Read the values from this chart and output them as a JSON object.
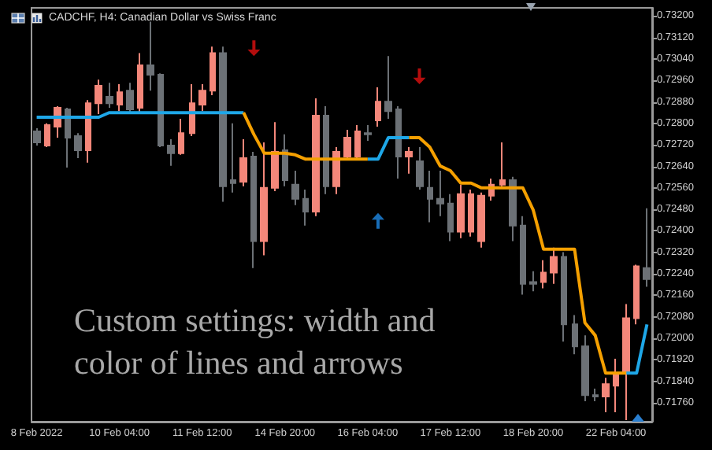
{
  "chart_data": {
    "type": "candlestick",
    "title": "CADCHF, H4: Canadian Dollar vs Swiss Franc",
    "categories": [
      "8 Feb 2022",
      null,
      null,
      null,
      null,
      null,
      null,
      null,
      "10 Feb 04:00",
      null,
      null,
      null,
      null,
      null,
      null,
      null,
      "11 Feb 12:00",
      null,
      null,
      null,
      null,
      null,
      null,
      null,
      "14 Feb 20:00",
      null,
      null,
      null,
      null,
      null,
      null,
      null,
      "16 Feb 04:00",
      null,
      null,
      null,
      null,
      null,
      null,
      null,
      "17 Feb 12:00",
      null,
      null,
      null,
      null,
      null,
      null,
      null,
      "18 Feb 20:00",
      null,
      null,
      null,
      null,
      null,
      null,
      null,
      "22 Feb 04:00",
      null,
      null,
      null
    ],
    "ohlc": [
      [
        0.7277,
        0.72782,
        0.72718,
        0.72729
      ],
      [
        0.72718,
        0.728,
        0.72712,
        0.72794
      ],
      [
        0.72788,
        0.72864,
        0.72747,
        0.72858
      ],
      [
        0.72852,
        0.72858,
        0.72636,
        0.72747
      ],
      [
        0.72753,
        0.72764,
        0.72671,
        0.727
      ],
      [
        0.727,
        0.72887,
        0.72654,
        0.72875
      ],
      [
        0.72875,
        0.72963,
        0.72835,
        0.7294
      ],
      [
        0.72899,
        0.72951,
        0.72858,
        0.72875
      ],
      [
        0.7287,
        0.72946,
        0.72846,
        0.72916
      ],
      [
        0.72922,
        0.72951,
        0.72835,
        0.72852
      ],
      [
        0.72858,
        0.73062,
        0.72835,
        0.73016
      ],
      [
        0.73016,
        0.73179,
        0.72922,
        0.72981
      ],
      [
        0.72981,
        0.72986,
        0.72712,
        0.72718
      ],
      [
        0.72718,
        0.72741,
        0.72642,
        0.72689
      ],
      [
        0.72689,
        0.72817,
        0.72683,
        0.72764
      ],
      [
        0.72764,
        0.72946,
        0.72753,
        0.72875
      ],
      [
        0.7287,
        0.72946,
        0.72846,
        0.72922
      ],
      [
        0.72922,
        0.73086,
        0.72905,
        0.73062
      ],
      [
        0.73062,
        0.73086,
        0.72508,
        0.72566
      ],
      [
        0.72589,
        0.728,
        0.72543,
        0.72578
      ],
      [
        0.72583,
        0.72741,
        0.72566,
        0.72671
      ],
      [
        0.72677,
        0.72694,
        0.72262,
        0.72362
      ],
      [
        0.72362,
        0.72729,
        0.72309,
        0.7256
      ],
      [
        0.7256,
        0.72805,
        0.72548,
        0.72694
      ],
      [
        0.727,
        0.72759,
        0.72566,
        0.72589
      ],
      [
        0.72572,
        0.72624,
        0.72496,
        0.72519
      ],
      [
        0.72519,
        0.72554,
        0.7242,
        0.72472
      ],
      [
        0.72472,
        0.72893,
        0.72455,
        0.72829
      ],
      [
        0.72829,
        0.72864,
        0.72537,
        0.72566
      ],
      [
        0.72566,
        0.72712,
        0.72537,
        0.72694
      ],
      [
        0.72677,
        0.72776,
        0.72665,
        0.72747
      ],
      [
        0.72677,
        0.72794,
        0.72665,
        0.7277
      ],
      [
        0.72764,
        0.72794,
        0.72735,
        0.72759
      ],
      [
        0.72811,
        0.72934,
        0.72788,
        0.72881
      ],
      [
        0.72881,
        0.73051,
        0.72817,
        0.72846
      ],
      [
        0.72852,
        0.72864,
        0.72595,
        0.72677
      ],
      [
        0.72677,
        0.72712,
        0.72613,
        0.72694
      ],
      [
        0.72659,
        0.72712,
        0.72554,
        0.72566
      ],
      [
        0.7256,
        0.72624,
        0.72432,
        0.72519
      ],
      [
        0.72519,
        0.72624,
        0.72455,
        0.72502
      ],
      [
        0.72502,
        0.72537,
        0.72362,
        0.72397
      ],
      [
        0.72397,
        0.72572,
        0.72373,
        0.72537
      ],
      [
        0.72397,
        0.72554,
        0.72379,
        0.72537
      ],
      [
        0.72362,
        0.72543,
        0.72338,
        0.72531
      ],
      [
        0.72531,
        0.72595,
        0.72513,
        0.72572
      ],
      [
        0.72572,
        0.72729,
        0.72566,
        0.72589
      ],
      [
        0.72589,
        0.72601,
        0.72362,
        0.7242
      ],
      [
        0.7242,
        0.72455,
        0.72163,
        0.72203
      ],
      [
        0.7221,
        0.7225,
        0.72175,
        0.72203
      ],
      [
        0.7221,
        0.72291,
        0.72186,
        0.72245
      ],
      [
        0.72245,
        0.72338,
        0.72203,
        0.72303
      ],
      [
        0.72303,
        0.72321,
        0.71988,
        0.72052
      ],
      [
        0.72052,
        0.72087,
        0.71941,
        0.7197
      ],
      [
        0.7197,
        0.72011,
        0.71766,
        0.71789
      ],
      [
        0.71789,
        0.71813,
        0.71766,
        0.71784
      ],
      [
        0.71784,
        0.71853,
        0.71725,
        0.7183
      ],
      [
        0.71824,
        0.71924,
        0.71725,
        0.71871
      ],
      [
        0.71871,
        0.72128,
        0.71696,
        0.72075
      ],
      [
        0.72075,
        0.72274,
        0.72052,
        0.72268
      ],
      [
        0.72262,
        0.72484,
        0.72192,
        0.72221
      ]
    ],
    "colors": [
      "#6c7176",
      "#f4877a",
      "#f4877a",
      "#6c7176",
      "#6c7176",
      "#f4877a",
      "#f4877a",
      "#6c7176",
      "#f4877a",
      "#6c7176",
      "#f4877a",
      "#6c7176",
      "#6c7176",
      "#6c7176",
      "#f4877a",
      "#f4877a",
      "#f4877a",
      "#f4877a",
      "#6c7176",
      "#6c7176",
      "#f4877a",
      "#6c7176",
      "#f4877a",
      "#f4877a",
      "#6c7176",
      "#6c7176",
      "#6c7176",
      "#f4877a",
      "#6c7176",
      "#f4877a",
      "#f4877a",
      "#f4877a",
      "#6c7176",
      "#f4877a",
      "#6c7176",
      "#6c7176",
      "#f4877a",
      "#6c7176",
      "#6c7176",
      "#6c7176",
      "#6c7176",
      "#f4877a",
      "#f4877a",
      "#f4877a",
      "#f4877a",
      "#f4877a",
      "#6c7176",
      "#6c7176",
      "#6c7176",
      "#f4877a",
      "#f4877a",
      "#6c7176",
      "#6c7176",
      "#6c7176",
      "#6c7176",
      "#f4877a",
      "#f4877a",
      "#f4877a",
      "#f4877a",
      "#6c7176"
    ],
    "series": [
      {
        "type": "line",
        "color": "#1ea7e8",
        "values": [
          0.72823,
          0.72823,
          0.72823,
          0.72823,
          0.72823,
          0.72823,
          0.72823,
          0.7284,
          0.7284,
          0.7284,
          0.7284,
          0.7284,
          0.7284,
          0.7284,
          0.7284,
          0.7284,
          0.7284,
          0.7284,
          0.7284,
          0.7284,
          0.7284,
          null,
          null,
          null,
          null,
          null,
          null,
          null,
          null,
          null,
          null,
          null,
          0.72667,
          0.72667,
          0.72747,
          0.72747,
          0.72747,
          null,
          null,
          null,
          null,
          null,
          null,
          null,
          null,
          null,
          null,
          null,
          null,
          null,
          null,
          null,
          null,
          null,
          null,
          null,
          null,
          0.71871,
          0.71871,
          0.72052
        ]
      },
      {
        "type": "line",
        "color": "#f5a000",
        "values": [
          null,
          null,
          null,
          null,
          null,
          null,
          null,
          null,
          null,
          null,
          null,
          null,
          null,
          null,
          null,
          null,
          null,
          null,
          null,
          null,
          0.7284,
          0.72759,
          0.72689,
          0.72689,
          0.72689,
          0.72683,
          0.72667,
          0.72667,
          0.72667,
          0.72667,
          0.72667,
          0.72667,
          0.72667,
          null,
          null,
          null,
          0.72747,
          0.72747,
          0.72712,
          0.72642,
          0.72624,
          0.72578,
          0.72578,
          0.7256,
          0.7256,
          0.7256,
          0.7256,
          0.7256,
          0.72478,
          0.72332,
          0.72332,
          0.72332,
          0.72332,
          0.72058,
          0.72011,
          0.71871,
          0.71871,
          0.71871,
          null,
          null
        ]
      },
      {
        "type": "scatter",
        "color": "#e01010",
        "values": [
          null,
          null,
          null,
          null,
          null,
          null,
          null,
          null,
          null,
          null,
          null,
          null,
          null,
          null,
          null,
          null,
          null,
          null,
          null,
          null,
          null,
          0.7308,
          null,
          null,
          null,
          null,
          null,
          null,
          null,
          null,
          null,
          null,
          null,
          null,
          null,
          null,
          null,
          0.72975,
          null,
          null,
          null,
          null,
          null,
          null,
          null,
          null,
          null,
          null,
          null,
          null,
          null,
          null,
          null,
          null,
          null,
          null,
          null,
          null,
          null,
          null
        ]
      },
      {
        "type": "scatter",
        "color": "#1e88e5",
        "values": [
          null,
          null,
          null,
          null,
          null,
          null,
          null,
          null,
          null,
          null,
          null,
          null,
          null,
          null,
          null,
          null,
          null,
          null,
          null,
          null,
          null,
          null,
          null,
          null,
          null,
          null,
          null,
          null,
          null,
          null,
          null,
          null,
          null,
          0.72437,
          null,
          null,
          null,
          null,
          null,
          null,
          null,
          null,
          null,
          null,
          null,
          null,
          null,
          null,
          null,
          null,
          null,
          null,
          null,
          null,
          null,
          null,
          null,
          null,
          null,
          null
        ]
      }
    ],
    "ylim": [
      0.7169,
      0.7323
    ],
    "yticks": [
      {
        "value": 0.7176,
        "label": "0.71760"
      },
      {
        "value": 0.7184,
        "label": "0.71840"
      },
      {
        "value": 0.7192,
        "label": "0.71920"
      },
      {
        "value": 0.72,
        "label": "0.72000"
      },
      {
        "value": 0.7208,
        "label": "0.72080"
      },
      {
        "value": 0.7216,
        "label": "0.72160"
      },
      {
        "value": 0.7224,
        "label": "0.72240"
      },
      {
        "value": 0.7232,
        "label": "0.72320"
      },
      {
        "value": 0.724,
        "label": "0.72400"
      },
      {
        "value": 0.7248,
        "label": "0.72480"
      },
      {
        "value": 0.7256,
        "label": "0.72560"
      },
      {
        "value": 0.7264,
        "label": "0.72640"
      },
      {
        "value": 0.7272,
        "label": "0.72720"
      },
      {
        "value": 0.728,
        "label": "0.72800"
      },
      {
        "value": 0.7288,
        "label": "0.72880"
      },
      {
        "value": 0.7296,
        "label": "0.72960"
      },
      {
        "value": 0.7304,
        "label": "0.73040"
      },
      {
        "value": 0.7312,
        "label": "0.73120"
      },
      {
        "value": 0.732,
        "label": "0.73200"
      }
    ],
    "annotations": [
      "Custom settings: width and color of lines and arrows"
    ],
    "grid": false
  }
}
